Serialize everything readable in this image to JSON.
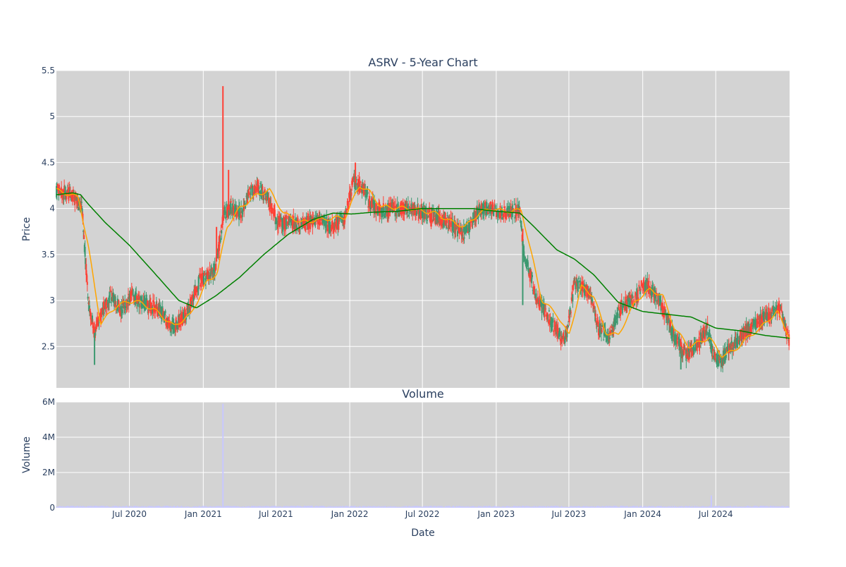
{
  "chart_data": {
    "type": "candlestick",
    "title": "ASRV - 5-Year Chart",
    "colors": {
      "up": "#3d9970",
      "down": "#ff4136",
      "ma_short": "#ffa500",
      "ma_long": "#008000",
      "volume": "#c8c8ff",
      "plot_bg": "#d3d3d3",
      "grid": "#ffffff",
      "text": "#2a3f5f"
    },
    "price_panel": {
      "ylabel": "Price",
      "ylim": [
        2.05,
        5.5
      ],
      "yticks": [
        2.5,
        3,
        3.5,
        4,
        4.5,
        5,
        5.5
      ],
      "ytick_labels": [
        "2.5",
        "3",
        "3.5",
        "4",
        "4.5",
        "5",
        "5.5"
      ]
    },
    "volume_panel": {
      "title": "Volume",
      "ylabel": "Volume",
      "ylim": [
        0,
        6000000
      ],
      "yticks": [
        0,
        2000000,
        4000000,
        6000000
      ],
      "ytick_labels": [
        "0",
        "2M",
        "4M",
        "6M"
      ]
    },
    "x_axis": {
      "xlabel": "Date",
      "range": [
        "2020-01-01",
        "2025-01-01"
      ],
      "ticks": [
        "2020-07-01",
        "2021-01-01",
        "2021-07-01",
        "2022-01-01",
        "2022-07-01",
        "2023-01-01",
        "2023-07-01",
        "2024-01-01",
        "2024-07-01"
      ],
      "tick_labels": [
        "Jul 2020",
        "Jan 2021",
        "Jul 2021",
        "Jan 2022",
        "Jul 2022",
        "Jan 2023",
        "Jul 2023",
        "Jan 2024",
        "Jul 2024"
      ]
    },
    "close_keypoints": [
      [
        "2020-01-01",
        4.2
      ],
      [
        "2020-02-10",
        4.15
      ],
      [
        "2020-03-05",
        4.0
      ],
      [
        "2020-03-20",
        3.0
      ],
      [
        "2020-04-05",
        2.65
      ],
      [
        "2020-04-25",
        2.9
      ],
      [
        "2020-05-15",
        3.05
      ],
      [
        "2020-06-10",
        2.9
      ],
      [
        "2020-07-05",
        3.05
      ],
      [
        "2020-08-10",
        2.95
      ],
      [
        "2020-09-15",
        2.9
      ],
      [
        "2020-10-15",
        2.7
      ],
      [
        "2020-11-20",
        2.85
      ],
      [
        "2020-12-20",
        3.2
      ],
      [
        "2021-01-25",
        3.3
      ],
      [
        "2021-02-05",
        3.45
      ],
      [
        "2021-02-20",
        3.95
      ],
      [
        "2021-03-10",
        4.0
      ],
      [
        "2021-04-05",
        3.95
      ],
      [
        "2021-04-25",
        4.15
      ],
      [
        "2021-05-15",
        4.25
      ],
      [
        "2021-06-10",
        4.1
      ],
      [
        "2021-07-05",
        3.85
      ],
      [
        "2021-08-01",
        3.85
      ],
      [
        "2021-09-10",
        3.82
      ],
      [
        "2021-10-15",
        3.9
      ],
      [
        "2021-11-15",
        3.8
      ],
      [
        "2021-12-20",
        3.9
      ],
      [
        "2022-01-10",
        4.3
      ],
      [
        "2022-02-05",
        4.2
      ],
      [
        "2022-02-20",
        4.05
      ],
      [
        "2022-03-20",
        3.98
      ],
      [
        "2022-05-10",
        4.0
      ],
      [
        "2022-07-10",
        3.95
      ],
      [
        "2022-09-05",
        3.85
      ],
      [
        "2022-10-10",
        3.72
      ],
      [
        "2022-11-20",
        3.98
      ],
      [
        "2022-12-20",
        4.0
      ],
      [
        "2023-01-20",
        3.95
      ],
      [
        "2023-03-01",
        3.98
      ],
      [
        "2023-03-10",
        3.55
      ],
      [
        "2023-03-25",
        3.3
      ],
      [
        "2023-04-15",
        3.0
      ],
      [
        "2023-05-15",
        2.8
      ],
      [
        "2023-06-10",
        2.6
      ],
      [
        "2023-06-25",
        2.6
      ],
      [
        "2023-07-15",
        3.2
      ],
      [
        "2023-08-05",
        3.15
      ],
      [
        "2023-08-25",
        3.05
      ],
      [
        "2023-09-10",
        2.7
      ],
      [
        "2023-10-10",
        2.6
      ],
      [
        "2023-11-10",
        2.95
      ],
      [
        "2023-12-10",
        3.0
      ],
      [
        "2024-01-05",
        3.2
      ],
      [
        "2024-02-05",
        3.05
      ],
      [
        "2024-02-25",
        2.85
      ],
      [
        "2024-03-20",
        2.6
      ],
      [
        "2024-04-20",
        2.4
      ],
      [
        "2024-05-20",
        2.55
      ],
      [
        "2024-06-10",
        2.7
      ],
      [
        "2024-06-25",
        2.4
      ],
      [
        "2024-07-15",
        2.35
      ],
      [
        "2024-08-10",
        2.5
      ],
      [
        "2024-09-10",
        2.65
      ],
      [
        "2024-10-10",
        2.75
      ],
      [
        "2024-11-10",
        2.85
      ],
      [
        "2024-12-10",
        2.9
      ],
      [
        "2025-01-01",
        2.55
      ]
    ],
    "ma_short_keypoints": [
      [
        "2020-01-01",
        4.2
      ],
      [
        "2020-02-25",
        4.12
      ],
      [
        "2020-03-20",
        3.6
      ],
      [
        "2020-04-20",
        2.75
      ],
      [
        "2020-06-01",
        2.95
      ],
      [
        "2020-07-15",
        3.0
      ],
      [
        "2020-09-01",
        2.9
      ],
      [
        "2020-10-20",
        2.72
      ],
      [
        "2020-12-01",
        2.85
      ],
      [
        "2021-01-10",
        3.2
      ],
      [
        "2021-02-05",
        3.3
      ],
      [
        "2021-03-01",
        3.8
      ],
      [
        "2021-04-01",
        4.0
      ],
      [
        "2021-05-15",
        4.15
      ],
      [
        "2021-06-15",
        4.2
      ],
      [
        "2021-07-20",
        3.95
      ],
      [
        "2021-09-01",
        3.85
      ],
      [
        "2021-10-20",
        3.88
      ],
      [
        "2021-12-01",
        3.9
      ],
      [
        "2021-12-20",
        3.9
      ],
      [
        "2022-01-25",
        4.25
      ],
      [
        "2022-02-20",
        4.18
      ],
      [
        "2022-03-20",
        4.02
      ],
      [
        "2022-06-01",
        4.0
      ],
      [
        "2022-08-01",
        3.95
      ],
      [
        "2022-09-15",
        3.85
      ],
      [
        "2022-10-15",
        3.8
      ],
      [
        "2022-11-20",
        3.95
      ],
      [
        "2022-12-20",
        4.0
      ],
      [
        "2023-01-20",
        3.97
      ],
      [
        "2023-03-05",
        3.98
      ],
      [
        "2023-03-25",
        3.6
      ],
      [
        "2023-04-25",
        3.0
      ],
      [
        "2023-06-01",
        2.85
      ],
      [
        "2023-07-01",
        2.62
      ],
      [
        "2023-08-01",
        3.15
      ],
      [
        "2023-09-01",
        3.05
      ],
      [
        "2023-10-01",
        2.65
      ],
      [
        "2023-11-01",
        2.62
      ],
      [
        "2023-12-15",
        3.0
      ],
      [
        "2024-01-20",
        3.12
      ],
      [
        "2024-02-20",
        3.05
      ],
      [
        "2024-03-20",
        2.7
      ],
      [
        "2024-04-25",
        2.5
      ],
      [
        "2024-05-25",
        2.55
      ],
      [
        "2024-06-15",
        2.6
      ],
      [
        "2024-07-15",
        2.4
      ],
      [
        "2024-08-15",
        2.45
      ],
      [
        "2024-09-20",
        2.6
      ],
      [
        "2024-10-20",
        2.7
      ],
      [
        "2024-12-01",
        2.88
      ],
      [
        "2025-01-01",
        2.6
      ]
    ],
    "ma_long_keypoints": [
      [
        "2020-01-01",
        4.15
      ],
      [
        "2020-02-10",
        4.17
      ],
      [
        "2020-03-01",
        4.15
      ],
      [
        "2020-03-20",
        4.05
      ],
      [
        "2020-05-01",
        3.85
      ],
      [
        "2020-07-01",
        3.6
      ],
      [
        "2020-09-01",
        3.3
      ],
      [
        "2020-11-01",
        3.0
      ],
      [
        "2020-12-15",
        2.92
      ],
      [
        "2021-02-01",
        3.05
      ],
      [
        "2021-04-01",
        3.25
      ],
      [
        "2021-06-01",
        3.5
      ],
      [
        "2021-08-01",
        3.72
      ],
      [
        "2021-10-01",
        3.88
      ],
      [
        "2021-11-20",
        3.95
      ],
      [
        "2022-01-05",
        3.94
      ],
      [
        "2022-03-01",
        3.96
      ],
      [
        "2022-05-01",
        3.97
      ],
      [
        "2022-07-01",
        4.0
      ],
      [
        "2022-09-01",
        4.0
      ],
      [
        "2022-11-01",
        4.0
      ],
      [
        "2023-01-01",
        3.97
      ],
      [
        "2023-03-01",
        3.95
      ],
      [
        "2023-04-01",
        3.82
      ],
      [
        "2023-06-01",
        3.55
      ],
      [
        "2023-07-15",
        3.45
      ],
      [
        "2023-09-01",
        3.28
      ],
      [
        "2023-11-01",
        2.98
      ],
      [
        "2024-01-01",
        2.88
      ],
      [
        "2024-03-01",
        2.85
      ],
      [
        "2024-05-01",
        2.82
      ],
      [
        "2024-07-01",
        2.7
      ],
      [
        "2024-09-01",
        2.67
      ],
      [
        "2024-11-01",
        2.62
      ],
      [
        "2025-01-01",
        2.59
      ]
    ],
    "spike_highs": [
      [
        "2020-03-10",
        3.7
      ],
      [
        "2020-04-05",
        2.3
      ],
      [
        "2021-02-03",
        3.8
      ],
      [
        "2021-02-19",
        5.33
      ],
      [
        "2021-03-05",
        4.42
      ],
      [
        "2022-01-15",
        4.5
      ],
      [
        "2023-03-08",
        3.78
      ],
      [
        "2023-03-08",
        2.95
      ],
      [
        "2024-04-05",
        2.25
      ]
    ],
    "volume_spikes": [
      [
        "2021-02-19",
        5900000
      ],
      [
        "2024-06-20",
        700000
      ]
    ]
  }
}
